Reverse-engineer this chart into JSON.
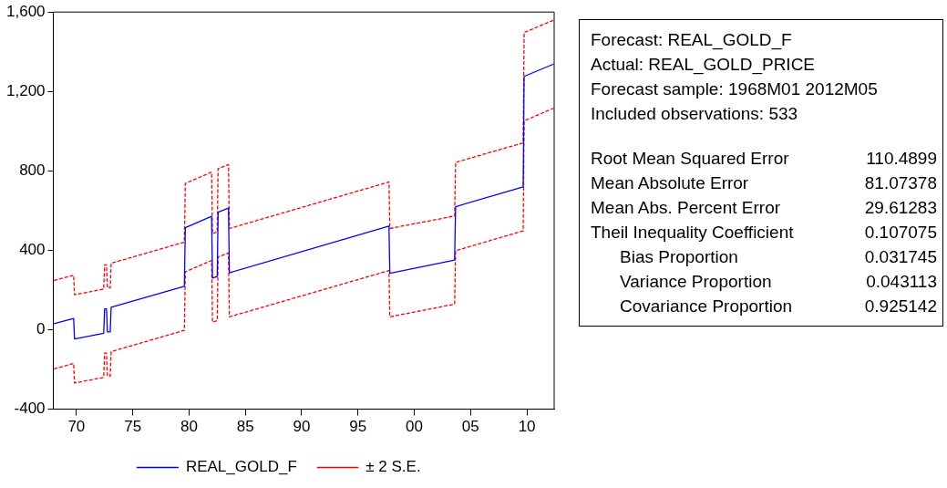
{
  "chart_data": {
    "type": "line",
    "marker": "none",
    "legend": "bottom",
    "grid": false,
    "xlim": [
      1967.95,
      2012.42
    ],
    "xticks": [
      {
        "value": 1970,
        "label": "70"
      },
      {
        "value": 1975,
        "label": "75"
      },
      {
        "value": 1980,
        "label": "80"
      },
      {
        "value": 1985,
        "label": "85"
      },
      {
        "value": 1990,
        "label": "90"
      },
      {
        "value": 1995,
        "label": "95"
      },
      {
        "value": 2000,
        "label": "00"
      },
      {
        "value": 2005,
        "label": "05"
      },
      {
        "value": 2010,
        "label": "10"
      }
    ],
    "ylim": [
      -400,
      1600
    ],
    "yticks": [
      {
        "value": -400,
        "label": "-400"
      },
      {
        "value": 0,
        "label": "0"
      },
      {
        "value": 400,
        "label": "400"
      },
      {
        "value": 800,
        "label": "800"
      },
      {
        "value": 1200,
        "label": "1,200"
      },
      {
        "value": 1600,
        "label": "1,600"
      }
    ],
    "series": [
      {
        "name": "REAL_GOLD_F",
        "color": "#0000ff",
        "line_style": "solid",
        "x": [
          1968,
          1969.75,
          1969.83,
          1972.42,
          1972.5,
          1972.67,
          1972.75,
          1973,
          1973.08,
          1979.58,
          1979.67,
          1982,
          1982.08,
          1982.5,
          1982.58,
          1983.5,
          1983.58,
          1997.75,
          1997.83,
          2003.58,
          2003.67,
          2009.67,
          2009.75,
          2012.37
        ],
        "values": [
          30,
          57,
          -46,
          -18,
          105,
          105,
          -11,
          -11,
          113,
          219,
          514,
          571,
          260,
          268,
          592,
          613,
          287,
          522,
          284,
          351,
          620,
          720,
          1276,
          1338
        ]
      },
      {
        "name": "± 2 S.E.",
        "color": "#ff0000",
        "line_style": "dashed",
        "x": [
          1968,
          1969.75,
          1969.83,
          1972.42,
          1972.5,
          1972.67,
          1972.75,
          1973,
          1973.08,
          1979.58,
          1979.67,
          1982,
          1982.08,
          1982.5,
          1982.58,
          1983.5,
          1983.58,
          1997.75,
          1997.83,
          2003.58,
          2003.67,
          2009.67,
          2009.75,
          2012.37
        ],
        "values": [
          248,
          275,
          176,
          205,
          327,
          327,
          211,
          211,
          335,
          441,
          737,
          794,
          484,
          492,
          811,
          832,
          510,
          744,
          510,
          573,
          843,
          941,
          1497,
          1559
        ]
      },
      {
        "color": "#ff0000",
        "line_style": "dashed",
        "x": [
          1968,
          1969.75,
          1969.83,
          1972.42,
          1972.5,
          1972.67,
          1972.75,
          1973,
          1973.08,
          1979.58,
          1979.67,
          1982,
          1982.08,
          1982.5,
          1982.58,
          1983.5,
          1983.58,
          1997.75,
          1997.83,
          2003.58,
          2003.67,
          2009.67,
          2009.75,
          2012.37
        ],
        "values": [
          -197,
          -170,
          -268,
          -240,
          -118,
          -118,
          -233,
          -233,
          -110,
          -3,
          292,
          349,
          38,
          46,
          367,
          387,
          65,
          298,
          65,
          129,
          398,
          498,
          1052,
          1116
        ]
      }
    ],
    "annotations": [
      "Forecast: REAL_GOLD_F",
      "Actual: REAL_GOLD_PRICE",
      "Forecast sample: 1968M01 2012M05",
      "Included observations: 533",
      "Root Mean Squared Error",
      "110.4899",
      "Mean Absolute Error",
      "81.07378",
      "Mean Abs. Percent Error",
      "29.61283",
      "Theil Inequality Coefficient",
      "0.107075",
      "Bias Proportion",
      "0.031745",
      "Variance Proportion",
      "0.043113",
      "Covariance Proportion",
      "0.925142"
    ]
  }
}
